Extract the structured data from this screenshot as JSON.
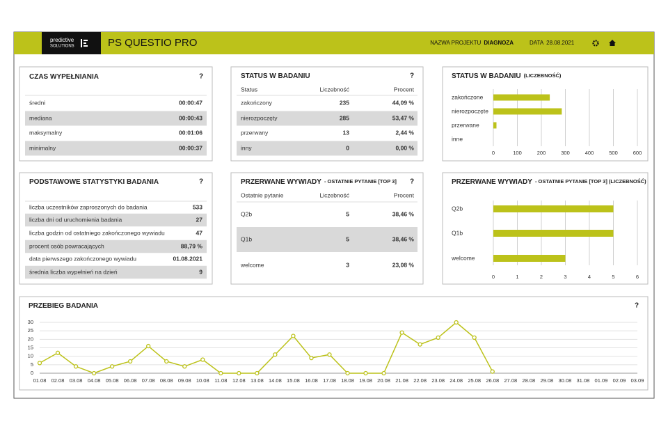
{
  "header": {
    "logo_line1": "predictive",
    "logo_line2": "SOLUTIONS",
    "app_title": "PS QUESTIO PRO",
    "project_label": "NAZWA PROJEKTU",
    "project_name": "DIAGNOZA",
    "date_label": "DATA",
    "date": "28.08.2021"
  },
  "panels": [
    {
      "title": "CZAS WYPEŁNIANIA",
      "help": "?",
      "rows": [
        [
          "średni",
          "00:00:47"
        ],
        [
          "mediana",
          "00:00:43"
        ],
        [
          "maksymalny",
          "00:01:06"
        ],
        [
          "minimalny",
          "00:00:37"
        ]
      ]
    },
    {
      "title": "STATUS W BADANIU",
      "help": "?",
      "columns": [
        "Status",
        "Liczebność",
        "Procent"
      ],
      "rows": [
        [
          "zakończony",
          235,
          "44,09 %"
        ],
        [
          "nierozpoczęty",
          285,
          "53,47 %"
        ],
        [
          "przerwany",
          13,
          "2,44 %"
        ],
        [
          "inny",
          0,
          "0,00 %"
        ]
      ]
    },
    {
      "title": "PODSTAWOWE STATYSTYKI BADANIA",
      "help": "?",
      "rows": [
        [
          "liczba uczestników zaproszonych do badania",
          533
        ],
        [
          "liczba dni od uruchomienia badania",
          27
        ],
        [
          "liczba godzin od ostatniego zakończonego wywiadu",
          47
        ],
        [
          "procent osób powracających",
          "88,79 %"
        ],
        [
          "data pierwszego zakończonego wywiadu",
          "01.08.2021"
        ],
        [
          "średnia liczba wypełnień na dzień",
          9
        ]
      ]
    },
    {
      "title": "PRZERWANE WYWIADY",
      "subtitle": "- OSTATNIE PYTANIE [TOP 3]",
      "help": "?",
      "columns": [
        "Ostatnie pytanie",
        "Liczebność",
        "Procent"
      ],
      "rows": [
        [
          "Q2b",
          5,
          "38,46 %"
        ],
        [
          "Q1b",
          5,
          "38,46 %"
        ],
        [
          "welcome",
          3,
          "23,08 %"
        ]
      ]
    }
  ],
  "chart_data": [
    {
      "type": "hbar",
      "title": "STATUS W BADANIU",
      "subtitle": "(LICZEBNOŚĆ)",
      "categories": [
        "zakończone",
        "nierozpoczęte",
        "przerwane",
        "inne"
      ],
      "values": [
        235,
        285,
        13,
        0
      ],
      "color": "#bcc21a",
      "xlim": [
        0,
        600
      ],
      "xticks": [
        0,
        100,
        200,
        300,
        400,
        500,
        600
      ],
      "grid": true
    },
    {
      "type": "hbar",
      "title": "PRZERWANE WYWIADY",
      "subtitle": "- OSTATNIE PYTANIE [TOP 3] (LICZEBNOŚĆ)",
      "categories": [
        "Q2b",
        "Q1b",
        "welcome"
      ],
      "values": [
        5,
        5,
        3
      ],
      "color": "#bcc21a",
      "xlim": [
        0,
        6
      ],
      "xticks": [
        0,
        1,
        2,
        3,
        4,
        5,
        6
      ],
      "grid": true
    },
    {
      "type": "line",
      "title": "PRZEBIEG BADANIA",
      "help": "?",
      "categories": [
        "01.08",
        "02.08",
        "03.08",
        "04.08",
        "05.08",
        "06.08",
        "07.08",
        "08.08",
        "09.08",
        "10.08",
        "11.08",
        "12.08",
        "13.08",
        "14.08",
        "15.08",
        "16.08",
        "17.08",
        "18.08",
        "19.08",
        "20.08",
        "21.08",
        "22.08",
        "23.08",
        "24.08",
        "25.08",
        "26.08",
        "27.08",
        "28.08",
        "29.08",
        "30.08",
        "31.08",
        "01.09",
        "02.09",
        "03.09"
      ],
      "values": [
        6,
        12,
        4,
        0,
        4,
        7,
        16,
        7,
        4,
        8,
        0,
        0,
        0,
        11,
        22,
        9,
        11,
        0,
        0,
        0,
        24,
        17,
        21,
        30,
        21,
        1,
        null,
        null,
        null,
        null,
        null,
        null,
        null,
        null
      ],
      "color": "#bcc21a",
      "ylim": [
        0,
        30
      ],
      "yticks": [
        0,
        5,
        10,
        15,
        20,
        25,
        30
      ],
      "grid": true
    }
  ]
}
